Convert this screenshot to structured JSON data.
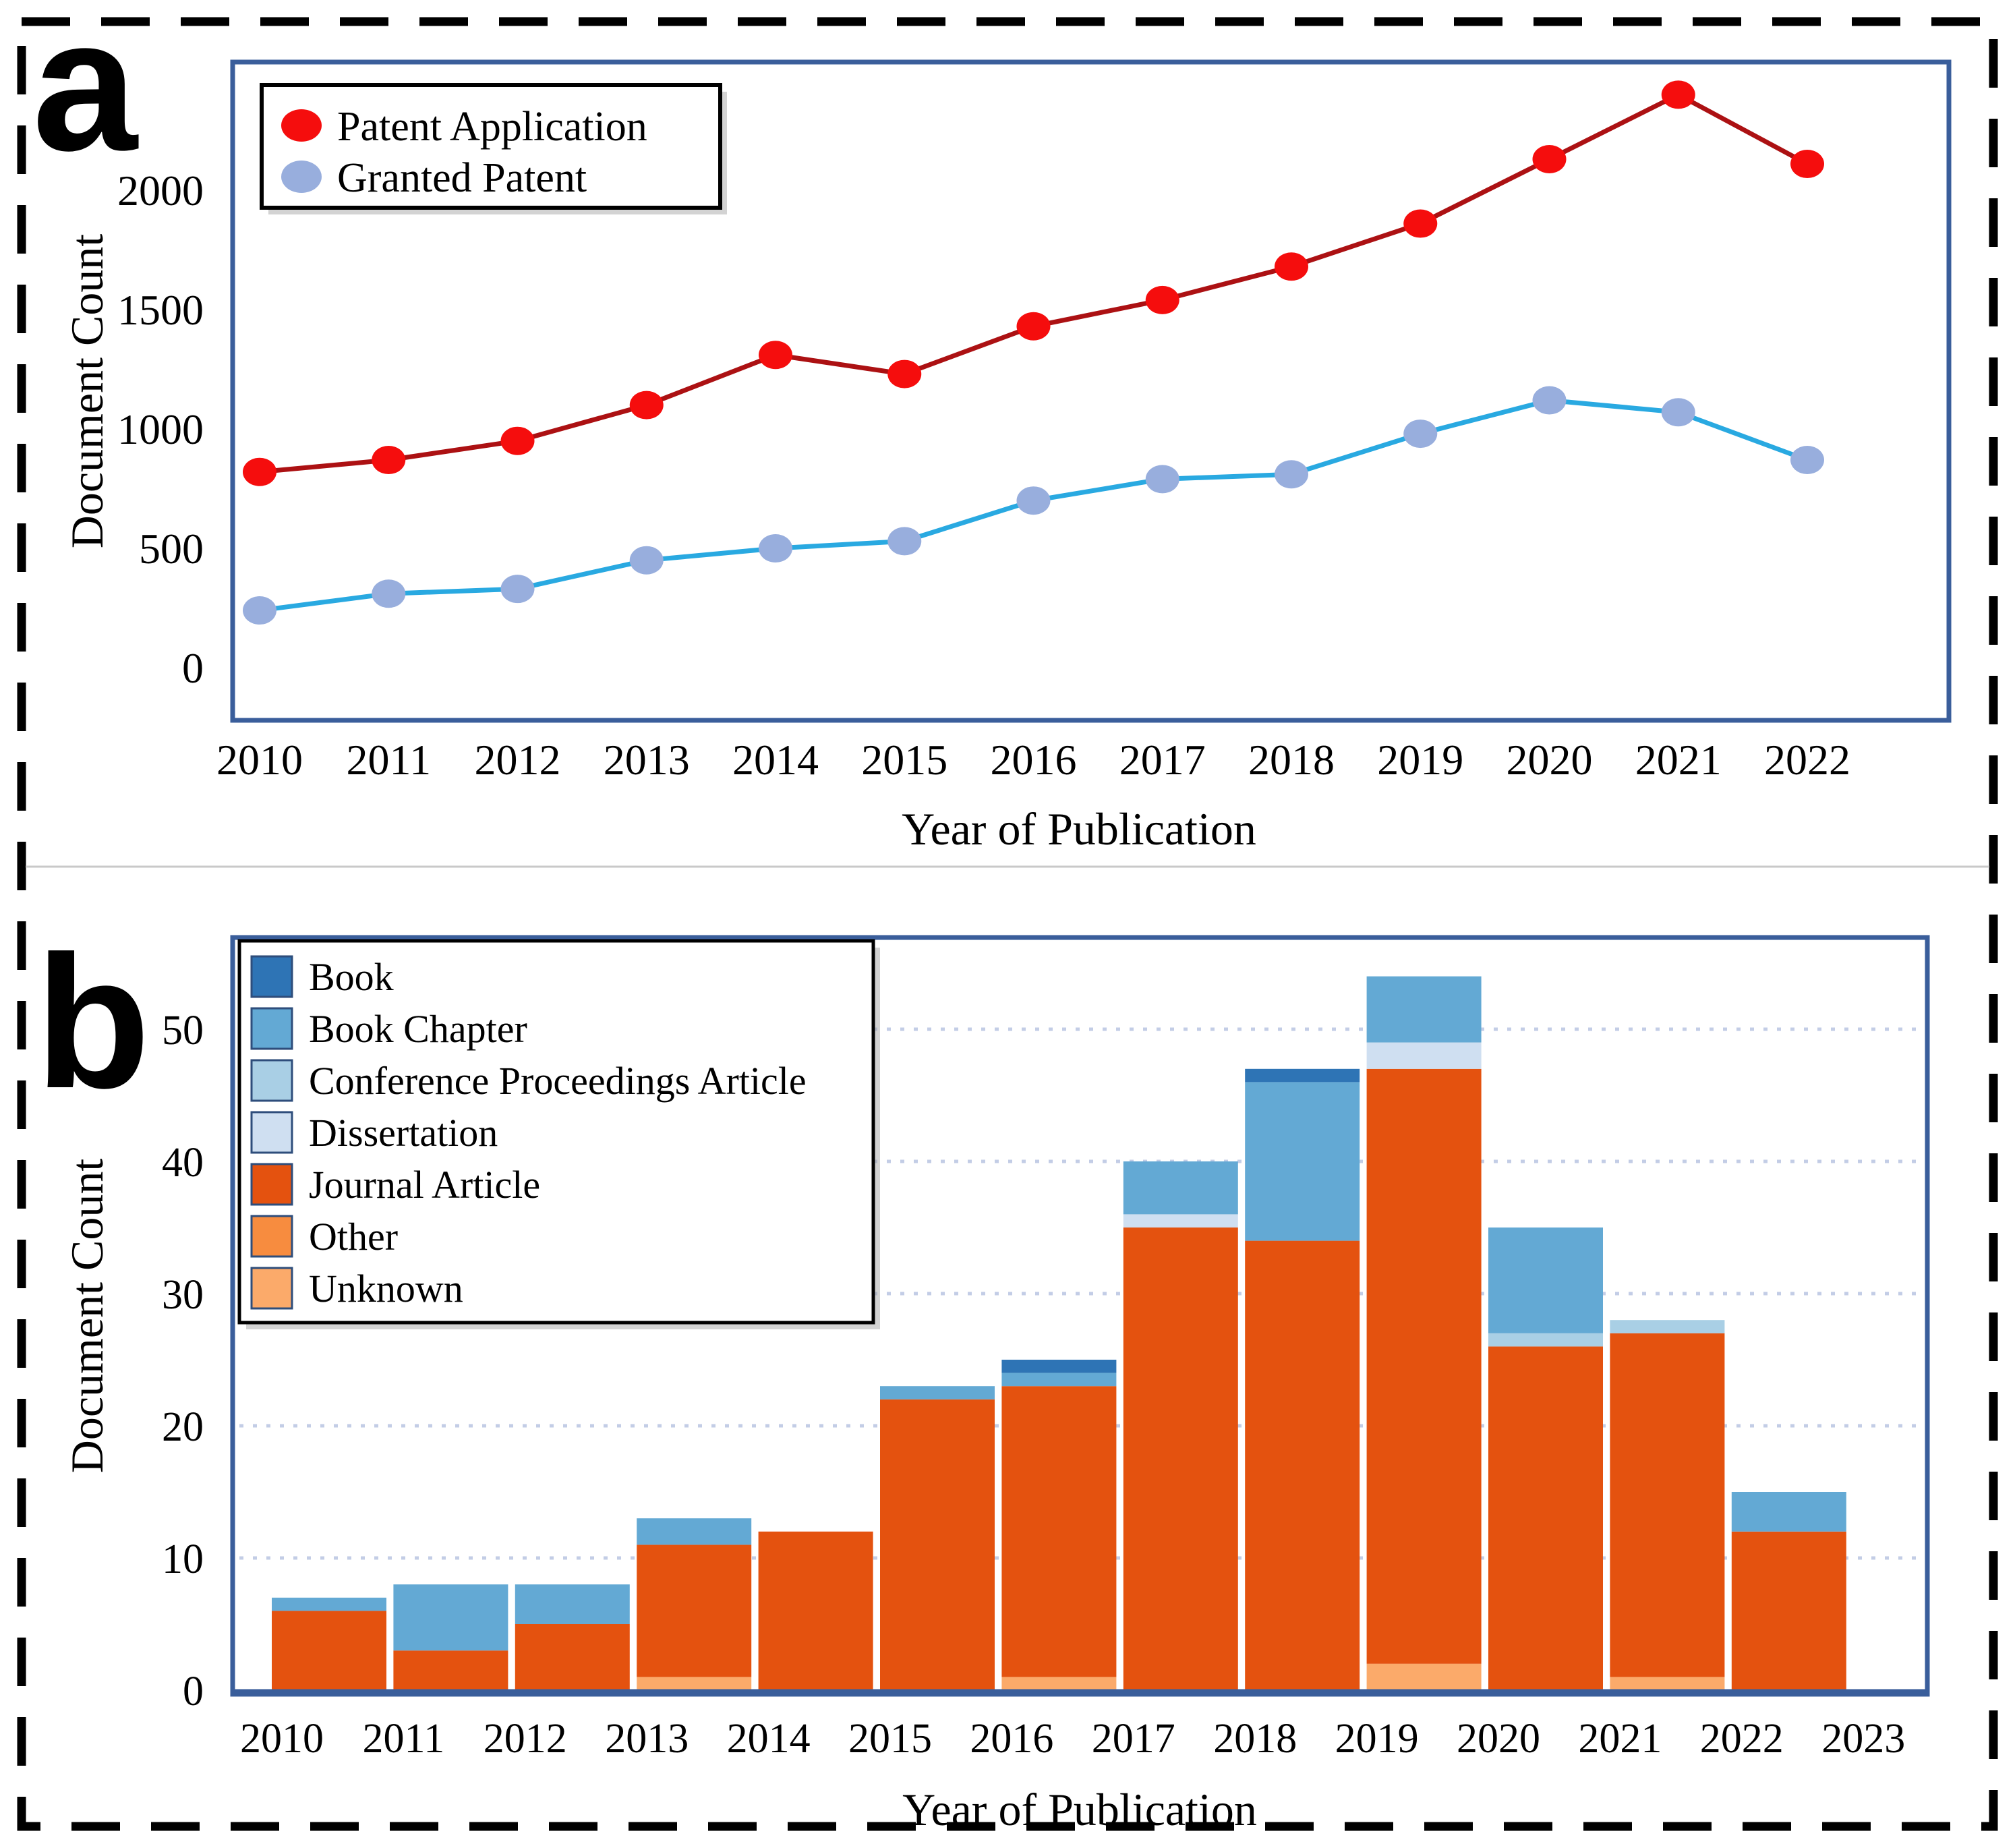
{
  "figure": {
    "frame_color": "#000000",
    "divider_color": "#c9c9c9",
    "panel_border_color": "#3a5e9b",
    "grid_color": "#c3cde6",
    "panels": [
      {
        "label": "a"
      },
      {
        "label": "b"
      }
    ]
  },
  "chart_data": [
    {
      "type": "line",
      "panel": "a",
      "title": "",
      "xlabel": "Year of Publication",
      "ylabel": "Document Count",
      "x": [
        2010,
        2011,
        2012,
        2013,
        2014,
        2015,
        2016,
        2017,
        2018,
        2019,
        2020,
        2021,
        2022
      ],
      "yticks": [
        0,
        500,
        1000,
        1500,
        2000
      ],
      "ylim": [
        -220,
        2540
      ],
      "grid": false,
      "legend_position": "top-left",
      "series": [
        {
          "name": "Patent Application",
          "marker_color": "#f50d0d",
          "line_color": "#ac1113",
          "values": [
            820,
            870,
            950,
            1100,
            1310,
            1230,
            1430,
            1540,
            1680,
            1860,
            2130,
            2400,
            2110
          ]
        },
        {
          "name": "Granted Patent",
          "marker_color": "#98aedd",
          "line_color": "#29a9e1",
          "values": [
            240,
            310,
            330,
            450,
            500,
            530,
            700,
            790,
            810,
            980,
            1120,
            1070,
            870
          ]
        }
      ]
    },
    {
      "type": "bar",
      "stacked": true,
      "panel": "b",
      "title": "",
      "xlabel": "Year of Publication",
      "ylabel": "Document Count",
      "categories": [
        2010,
        2011,
        2012,
        2013,
        2014,
        2015,
        2016,
        2017,
        2018,
        2019,
        2020,
        2021,
        2022
      ],
      "axis_xticks": [
        2010,
        2011,
        2012,
        2013,
        2014,
        2015,
        2016,
        2017,
        2018,
        2019,
        2020,
        2021,
        2022,
        2023
      ],
      "yticks": [
        0,
        10,
        20,
        30,
        40,
        50
      ],
      "ylim": [
        0,
        57
      ],
      "grid": "horizontal-dotted",
      "legend_position": "top-left",
      "stack_order_bottom_to_top": [
        "Unknown",
        "Other",
        "Journal Article",
        "Dissertation",
        "Conference Proceedings Article",
        "Book Chapter",
        "Book"
      ],
      "series": [
        {
          "name": "Book",
          "color": "#2e74b5",
          "values": [
            0,
            0,
            0,
            0,
            0,
            0,
            1,
            0,
            1,
            0,
            0,
            0,
            0
          ]
        },
        {
          "name": "Book Chapter",
          "color": "#63a9d4",
          "values": [
            1,
            5,
            3,
            2,
            0,
            1,
            1,
            4,
            12,
            5,
            8,
            0,
            3
          ]
        },
        {
          "name": "Conference Proceedings Article",
          "color": "#a9cfe5",
          "values": [
            0,
            0,
            0,
            0,
            0,
            0,
            0,
            0,
            0,
            0,
            1,
            1,
            0
          ]
        },
        {
          "name": "Dissertation",
          "color": "#cfdff1",
          "values": [
            0,
            0,
            0,
            0,
            0,
            0,
            0,
            1,
            0,
            2,
            0,
            0,
            0
          ]
        },
        {
          "name": "Journal Article",
          "color": "#e4520f",
          "values": [
            6,
            3,
            5,
            10,
            12,
            22,
            22,
            35,
            34,
            45,
            26,
            26,
            12
          ]
        },
        {
          "name": "Other",
          "color": "#f78c3f",
          "values": [
            0,
            0,
            0,
            0,
            0,
            0,
            0,
            0,
            0,
            0,
            0,
            0,
            0
          ]
        },
        {
          "name": "Unknown",
          "color": "#fbaa6a",
          "values": [
            0,
            0,
            0,
            1,
            0,
            0,
            1,
            0,
            0,
            2,
            0,
            1,
            0
          ]
        }
      ],
      "totals": [
        7,
        8,
        8,
        13,
        12,
        23,
        25,
        40,
        47,
        54,
        35,
        28,
        15
      ]
    }
  ]
}
